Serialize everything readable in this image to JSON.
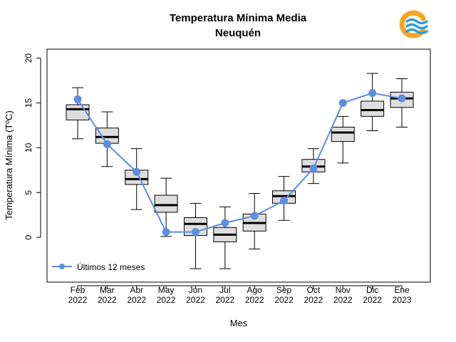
{
  "chart_data": {
    "type": "box",
    "title": "Temperatura Mínima Media",
    "subtitle": "Neuquén",
    "xlabel": "Mes",
    "ylabel": "Temperatura Mínima (TºC)",
    "ylim": [
      -5,
      21
    ],
    "yticks": [
      0,
      5,
      10,
      15,
      20
    ],
    "categories": [
      {
        "month": "Feb",
        "year": "2022"
      },
      {
        "month": "Mar",
        "year": "2022"
      },
      {
        "month": "Abr",
        "year": "2022"
      },
      {
        "month": "May",
        "year": "2022"
      },
      {
        "month": "Jun",
        "year": "2022"
      },
      {
        "month": "Jul",
        "year": "2022"
      },
      {
        "month": "Ago",
        "year": "2022"
      },
      {
        "month": "Sep",
        "year": "2022"
      },
      {
        "month": "Oct",
        "year": "2022"
      },
      {
        "month": "Nov",
        "year": "2022"
      },
      {
        "month": "Dic",
        "year": "2022"
      },
      {
        "month": "Ene",
        "year": "2023"
      }
    ],
    "boxes": [
      {
        "min": 11.0,
        "q1": 13.1,
        "median": 14.3,
        "q3": 14.8,
        "max": 16.7
      },
      {
        "min": 7.9,
        "q1": 10.5,
        "median": 11.2,
        "q3": 12.2,
        "max": 14.0
      },
      {
        "min": 3.1,
        "q1": 5.9,
        "median": 6.5,
        "q3": 7.5,
        "max": 9.9
      },
      {
        "min": 0.1,
        "q1": 2.8,
        "median": 3.6,
        "q3": 4.7,
        "max": 6.6
      },
      {
        "min": -3.5,
        "q1": 0.2,
        "median": 1.5,
        "q3": 2.2,
        "max": 3.8
      },
      {
        "min": -3.5,
        "q1": -0.5,
        "median": 0.3,
        "q3": 1.1,
        "max": 3.4
      },
      {
        "min": -1.3,
        "q1": 0.7,
        "median": 1.6,
        "q3": 2.6,
        "max": 4.9
      },
      {
        "min": 1.9,
        "q1": 3.8,
        "median": 4.6,
        "q3": 5.2,
        "max": 6.8
      },
      {
        "min": 6.0,
        "q1": 7.3,
        "median": 7.9,
        "q3": 8.7,
        "max": 9.9
      },
      {
        "min": 8.3,
        "q1": 10.7,
        "median": 11.7,
        "q3": 12.3,
        "max": 13.5
      },
      {
        "min": 11.9,
        "q1": 13.5,
        "median": 14.2,
        "q3": 15.2,
        "max": 18.3
      },
      {
        "min": 12.3,
        "q1": 14.5,
        "median": 15.5,
        "q3": 16.2,
        "max": 17.7
      }
    ],
    "series": [
      {
        "name": "Últimos 12 meses",
        "color": "#5b8ede",
        "values": [
          15.4,
          10.4,
          7.3,
          0.6,
          0.6,
          1.6,
          2.4,
          4.1,
          7.7,
          15.0,
          16.1,
          15.5
        ]
      }
    ],
    "box_fill": "#dedede",
    "legend_position": "bottom-left",
    "grid": false
  },
  "logo": {
    "name": "weather-service-logo",
    "orange": "#f5a623",
    "blue": "#2d9fd8"
  }
}
